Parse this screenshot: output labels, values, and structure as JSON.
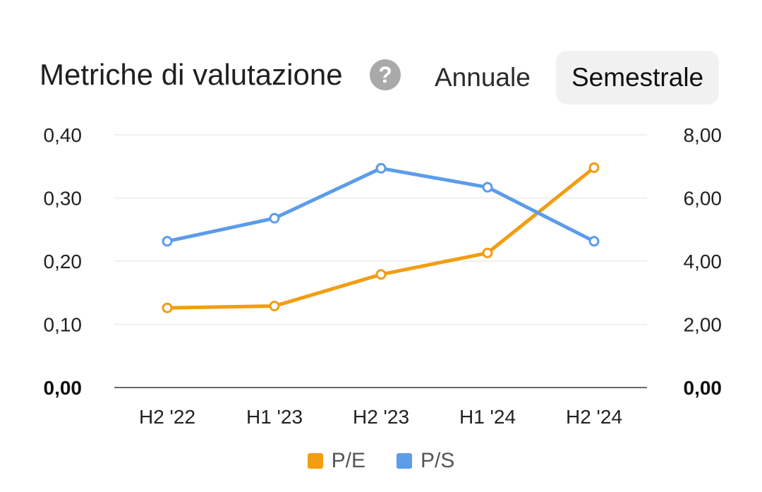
{
  "header": {
    "title": "Metriche di valutazione",
    "help_icon": "help-circle-icon",
    "help_glyph": "?",
    "tabs": [
      {
        "label": "Annuale",
        "selected": false
      },
      {
        "label": "Semestrale",
        "selected": true
      }
    ]
  },
  "chart_data": {
    "type": "line",
    "categories": [
      "H2 '22",
      "H1 '23",
      "H2 '23",
      "H1 '24",
      "H2 '24"
    ],
    "left_axis": {
      "ylim": [
        0,
        0.4
      ],
      "ticks": [
        "0,00",
        "0,10",
        "0,20",
        "0,30",
        "0,40"
      ]
    },
    "right_axis": {
      "ylim": [
        0,
        8
      ],
      "ticks": [
        "0,00",
        "2,00",
        "4,00",
        "6,00",
        "8,00"
      ]
    },
    "grid": true,
    "legend_position": "bottom-center",
    "series": [
      {
        "name": "P/E",
        "axis": "left",
        "color": "#F29D12",
        "values": [
          0.126,
          0.129,
          0.179,
          0.213,
          0.348
        ]
      },
      {
        "name": "P/S",
        "axis": "right",
        "color": "#5B9CEB",
        "values": [
          4.63,
          5.36,
          6.94,
          6.34,
          4.63
        ]
      }
    ]
  }
}
